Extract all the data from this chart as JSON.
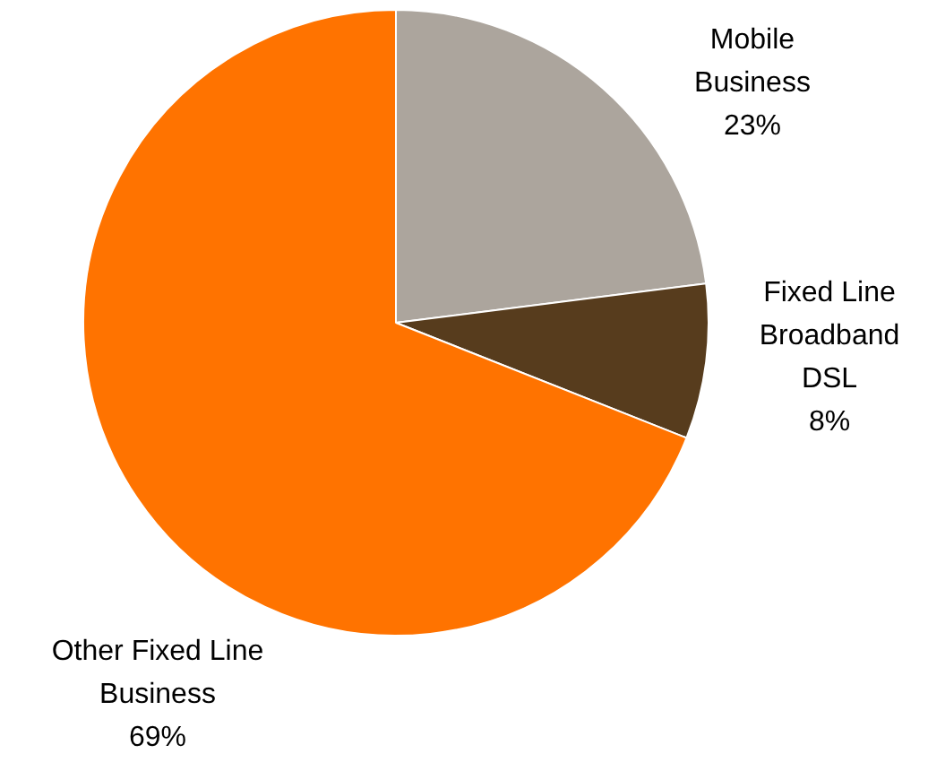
{
  "chart_data": {
    "type": "pie",
    "categories": [
      "Mobile Business",
      "Fixed Line Broadband DSL",
      "Other Fixed Line Business"
    ],
    "values": [
      23,
      8,
      69
    ],
    "colors": [
      "#aca59d",
      "#573c1d",
      "#ff7300"
    ],
    "value_labels": [
      "23%",
      "8%",
      "69%"
    ]
  }
}
